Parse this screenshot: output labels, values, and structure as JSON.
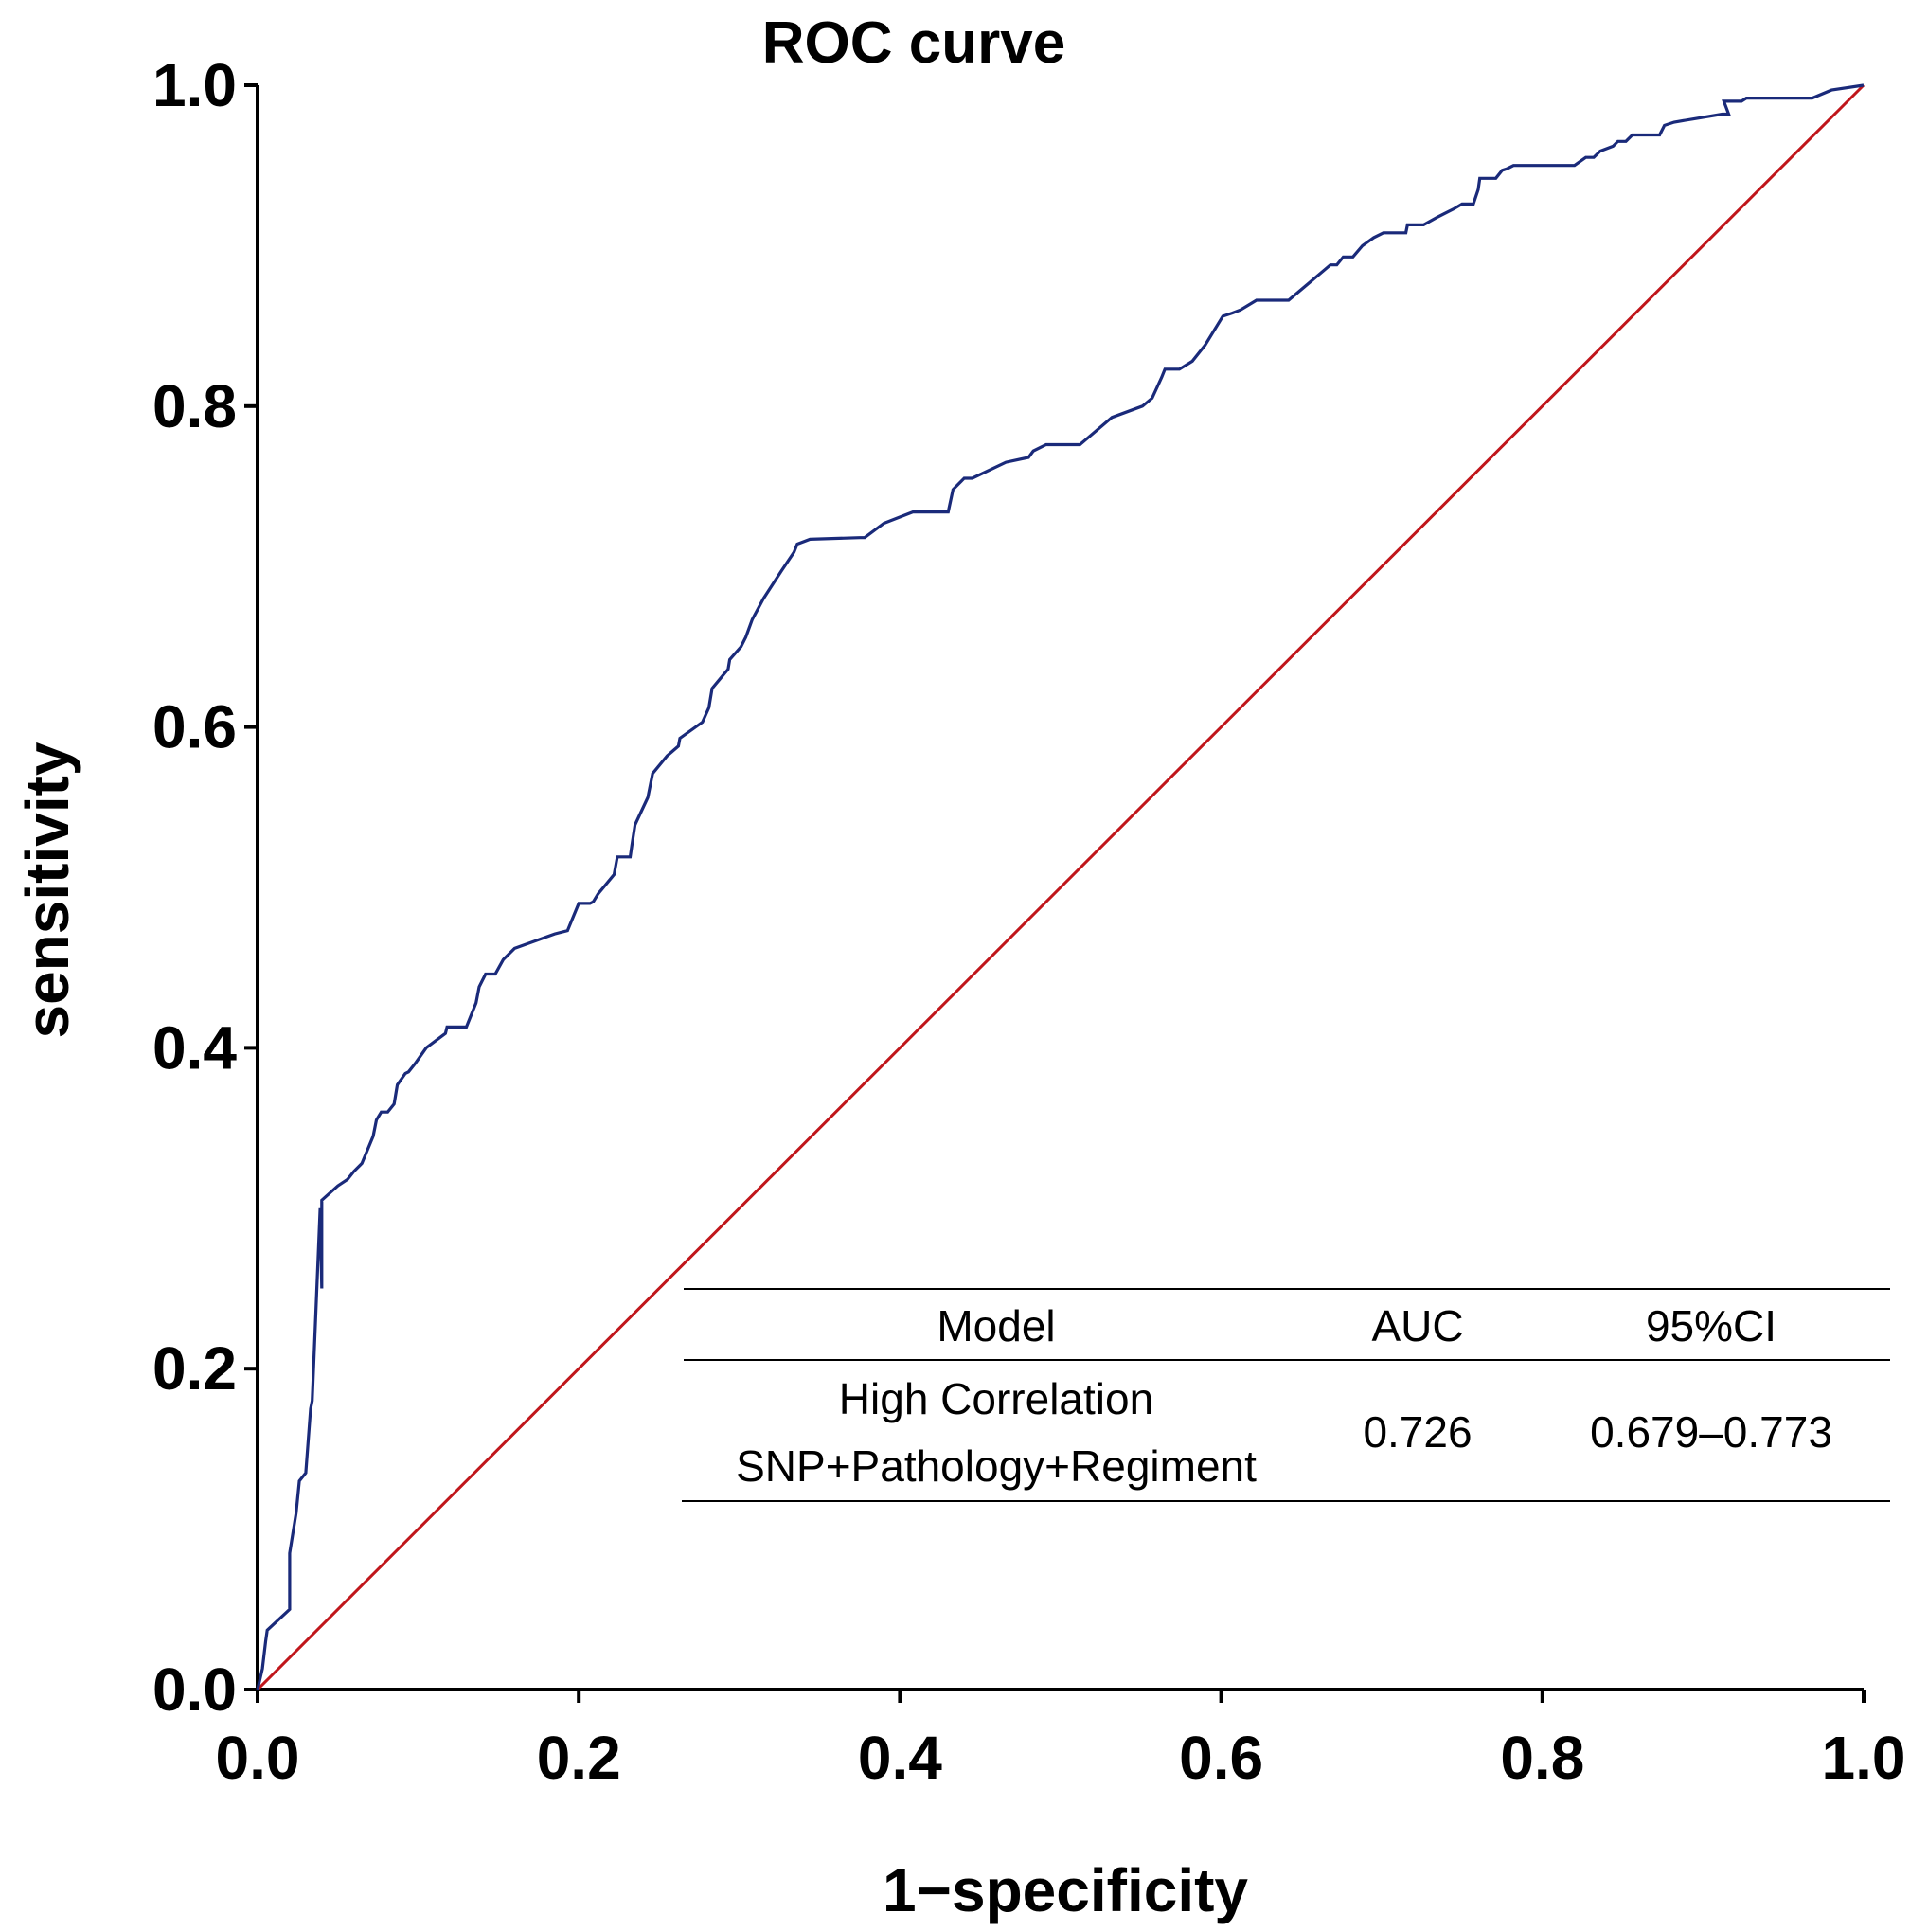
{
  "chart_data": {
    "type": "line",
    "title": "ROC curve",
    "xlabel": "1−specificity",
    "ylabel": "sensitivity",
    "xlim": [
      0,
      1
    ],
    "ylim": [
      0,
      1
    ],
    "x_ticks": [
      "0.0",
      "0.2",
      "0.4",
      "0.6",
      "0.8",
      "1.0"
    ],
    "y_ticks": [
      "0.0",
      "0.2",
      "0.4",
      "0.6",
      "0.8",
      "1.0"
    ],
    "grid": false,
    "colors": {
      "roc": "#1a2a7a",
      "reference": "#c0161b",
      "axis": "#000000"
    },
    "series": [
      {
        "name": "High Correlation SNP+Pathology+Regiment",
        "x": [
          0.0,
          0.003,
          0.005,
          0.006,
          0.02,
          0.02,
          0.024,
          0.026,
          0.03,
          0.033,
          0.034,
          0.039,
          0.04,
          0.04,
          0.05,
          0.056,
          0.06,
          0.065,
          0.072,
          0.074,
          0.077,
          0.081,
          0.085,
          0.087,
          0.092,
          0.094,
          0.098,
          0.105,
          0.117,
          0.118,
          0.128,
          0.13,
          0.136,
          0.138,
          0.142,
          0.146,
          0.146,
          0.148,
          0.153,
          0.16,
          0.185,
          0.193,
          0.2,
          0.207,
          0.209,
          0.212,
          0.222,
          0.224,
          0.232,
          0.233,
          0.235,
          0.243,
          0.246,
          0.255,
          0.262,
          0.263,
          0.277,
          0.281,
          0.283,
          0.293,
          0.294,
          0.301,
          0.304,
          0.308,
          0.315,
          0.326,
          0.334,
          0.336,
          0.344,
          0.375,
          0.378,
          0.39,
          0.408,
          0.411,
          0.43,
          0.433,
          0.44,
          0.445,
          0.466,
          0.48,
          0.483,
          0.491,
          0.512,
          0.532,
          0.551,
          0.557,
          0.563,
          0.565,
          0.574,
          0.582,
          0.59,
          0.601,
          0.607,
          0.612,
          0.622,
          0.627,
          0.642,
          0.655,
          0.668,
          0,
          0,
          0,
          0,
          0,
          0,
          0,
          0,
          0,
          0,
          0,
          0,
          0,
          0,
          0,
          0,
          0,
          0,
          0,
          0,
          0,
          0,
          0
        ],
        "y": [
          0.0,
          0.013,
          0.03,
          0.037,
          0.05,
          0.085,
          0.11,
          0.13,
          0.135,
          0.175,
          0.18,
          0.3,
          0.25,
          0.305,
          0.314,
          0.318,
          0.323,
          0.328,
          0.345,
          0.355,
          0.36,
          0.36,
          0.365,
          0.377,
          0.384,
          0.385,
          0.39,
          0.4,
          0.409,
          0.413,
          0.413,
          0.413,
          0.428,
          0.438,
          0.446,
          0.446,
          0.446,
          0.446,
          0.455,
          0.462,
          0.471,
          0.473,
          0.49,
          0.49,
          0.491,
          0.496,
          0.508,
          0.519,
          0.519,
          0.526,
          0.539,
          0.556,
          0.571,
          0.582,
          0.588,
          0.593,
          0.603,
          0.612,
          0.624,
          0.636,
          0.642,
          0.65,
          0.656,
          0.667,
          0.68,
          0.697,
          0.709,
          0.714,
          0.717,
          0.718,
          0.718,
          0.727,
          0.734,
          0.734,
          0.734,
          0.748,
          0.755,
          0.755,
          0.765,
          0.768,
          0.772,
          0.776,
          0.776,
          0.793,
          0.8,
          0.805,
          0.818,
          0.823,
          0.823,
          0.828,
          0.838,
          0.856,
          0.858,
          0.86,
          0.866,
          0.866,
          0.866,
          0.877,
          0.888,
          0,
          0,
          0,
          0,
          0,
          0,
          0,
          0,
          0,
          0,
          0,
          0,
          0,
          0,
          0,
          0,
          0,
          0,
          0,
          0,
          0,
          0,
          0
        ]
      },
      {
        "name": "Reference",
        "x": [
          0,
          1
        ],
        "y": [
          0,
          1
        ]
      }
    ],
    "table": {
      "headers": [
        "Model",
        "AUC",
        "95%CI"
      ],
      "rows": [
        {
          "model_line1": "High Correlation",
          "model_line2": "SNP+Pathology+Regiment",
          "auc": "0.726",
          "ci": "0.679–0.773"
        }
      ]
    }
  }
}
